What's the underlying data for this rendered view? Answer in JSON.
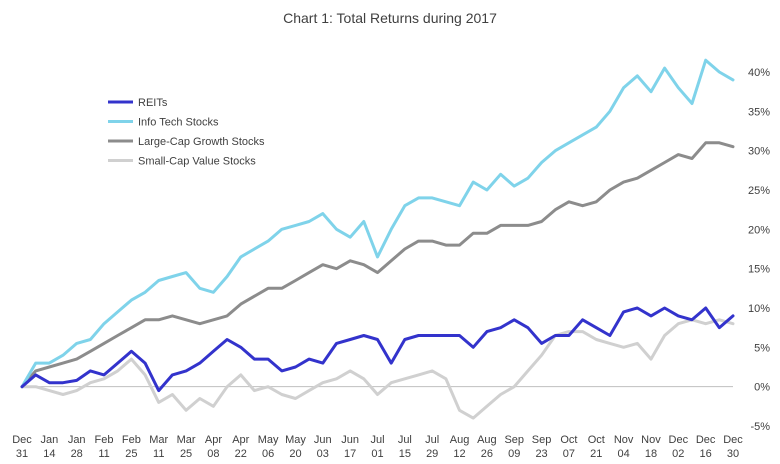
{
  "chart_data": {
    "type": "line",
    "title": "Chart 1: Total Returns during 2017",
    "xlabel": "",
    "ylabel": "",
    "x_tick_labels": [
      [
        "Dec",
        "31"
      ],
      [
        "Jan",
        "14"
      ],
      [
        "Jan",
        "28"
      ],
      [
        "Feb",
        "11"
      ],
      [
        "Feb",
        "25"
      ],
      [
        "Mar",
        "11"
      ],
      [
        "Mar",
        "25"
      ],
      [
        "Apr",
        "08"
      ],
      [
        "Apr",
        "22"
      ],
      [
        "May",
        "06"
      ],
      [
        "May",
        "20"
      ],
      [
        "Jun",
        "03"
      ],
      [
        "Jun",
        "17"
      ],
      [
        "Jul",
        "01"
      ],
      [
        "Jul",
        "15"
      ],
      [
        "Jul",
        "29"
      ],
      [
        "Aug",
        "12"
      ],
      [
        "Aug",
        "26"
      ],
      [
        "Sep",
        "09"
      ],
      [
        "Sep",
        "23"
      ],
      [
        "Oct",
        "07"
      ],
      [
        "Oct",
        "21"
      ],
      [
        "Nov",
        "04"
      ],
      [
        "Nov",
        "18"
      ],
      [
        "Dec",
        "02"
      ],
      [
        "Dec",
        "16"
      ],
      [
        "Dec",
        "30"
      ]
    ],
    "ylim": [
      -5,
      40
    ],
    "y_ticks": [
      "-5%",
      "0%",
      "5%",
      "10%",
      "15%",
      "20%",
      "25%",
      "30%",
      "35%",
      "40%"
    ],
    "y_tick_values": [
      -5,
      0,
      5,
      10,
      15,
      20,
      25,
      30,
      35,
      40
    ],
    "y_axis_side": "right",
    "grid": false,
    "legend_position": "upper-left",
    "x": [
      "Dec 31",
      "Jan 07",
      "Jan 14",
      "Jan 21",
      "Jan 28",
      "Feb 04",
      "Feb 11",
      "Feb 18",
      "Feb 25",
      "Mar 04",
      "Mar 11",
      "Mar 18",
      "Mar 25",
      "Apr 01",
      "Apr 08",
      "Apr 15",
      "Apr 22",
      "Apr 29",
      "May 06",
      "May 13",
      "May 20",
      "May 27",
      "Jun 03",
      "Jun 10",
      "Jun 17",
      "Jun 24",
      "Jul 01",
      "Jul 08",
      "Jul 15",
      "Jul 22",
      "Jul 29",
      "Aug 05",
      "Aug 12",
      "Aug 19",
      "Aug 26",
      "Sep 02",
      "Sep 09",
      "Sep 16",
      "Sep 23",
      "Sep 30",
      "Oct 07",
      "Oct 14",
      "Oct 21",
      "Oct 28",
      "Nov 04",
      "Nov 11",
      "Nov 18",
      "Nov 25",
      "Dec 02",
      "Dec 09",
      "Dec 16",
      "Dec 23",
      "Dec 30"
    ],
    "series": [
      {
        "name": "REITs",
        "color": "#3333cc",
        "values": [
          0,
          1.5,
          0.5,
          0.5,
          0.8,
          2.0,
          1.5,
          3.0,
          4.5,
          3.0,
          -0.5,
          1.5,
          2.0,
          3.0,
          4.5,
          6.0,
          5.0,
          3.5,
          3.5,
          2.0,
          2.5,
          3.5,
          3.0,
          5.5,
          6.0,
          6.5,
          6.0,
          3.0,
          6.0,
          6.5,
          6.5,
          6.5,
          6.5,
          5.0,
          7.0,
          7.5,
          8.5,
          7.5,
          5.5,
          6.5,
          6.5,
          8.5,
          7.5,
          6.5,
          9.5,
          10.0,
          9.0,
          10.0,
          9.0,
          8.5,
          10.0,
          7.5,
          9.0
        ]
      },
      {
        "name": "Info Tech Stocks",
        "color": "#7fd3ea",
        "values": [
          0,
          3.0,
          3.0,
          4.0,
          5.5,
          6.0,
          8.0,
          9.5,
          11.0,
          12.0,
          13.5,
          14.0,
          14.5,
          12.5,
          12.0,
          14.0,
          16.5,
          17.5,
          18.5,
          20.0,
          20.5,
          21.0,
          22.0,
          20.0,
          19.0,
          21.0,
          16.5,
          20.0,
          23.0,
          24.0,
          24.0,
          23.5,
          23.0,
          26.0,
          25.0,
          27.0,
          25.5,
          26.5,
          28.5,
          30.0,
          31.0,
          32.0,
          33.0,
          35.0,
          38.0,
          39.5,
          37.5,
          40.5,
          38.0,
          36.0,
          41.5,
          40.0,
          39.0
        ]
      },
      {
        "name": "Large-Cap Growth Stocks",
        "color": "#8c8c8c",
        "values": [
          0,
          2.0,
          2.5,
          3.0,
          3.5,
          4.5,
          5.5,
          6.5,
          7.5,
          8.5,
          8.5,
          9.0,
          8.5,
          8.0,
          8.5,
          9.0,
          10.5,
          11.5,
          12.5,
          12.5,
          13.5,
          14.5,
          15.5,
          15.0,
          16.0,
          15.5,
          14.5,
          16.0,
          17.5,
          18.5,
          18.5,
          18.0,
          18.0,
          19.5,
          19.5,
          20.5,
          20.5,
          20.5,
          21.0,
          22.5,
          23.5,
          23.0,
          23.5,
          25.0,
          26.0,
          26.5,
          27.5,
          28.5,
          29.5,
          29.0,
          31.0,
          31.0,
          30.5
        ]
      },
      {
        "name": "Small-Cap Value Stocks",
        "color": "#d0d0d0",
        "values": [
          0,
          0.0,
          -0.5,
          -1.0,
          -0.5,
          0.5,
          1.0,
          2.0,
          3.5,
          1.5,
          -2.0,
          -1.0,
          -3.0,
          -1.5,
          -2.5,
          0.0,
          1.5,
          -0.5,
          0.0,
          -1.0,
          -1.5,
          -0.5,
          0.5,
          1.0,
          2.0,
          1.0,
          -1.0,
          0.5,
          1.0,
          1.5,
          2.0,
          1.0,
          -3.0,
          -4.0,
          -2.5,
          -1.0,
          0.0,
          2.0,
          4.0,
          6.5,
          7.0,
          7.0,
          6.0,
          5.5,
          5.0,
          5.5,
          3.5,
          6.5,
          8.0,
          8.5,
          8.0,
          8.5,
          8.0
        ]
      }
    ]
  }
}
